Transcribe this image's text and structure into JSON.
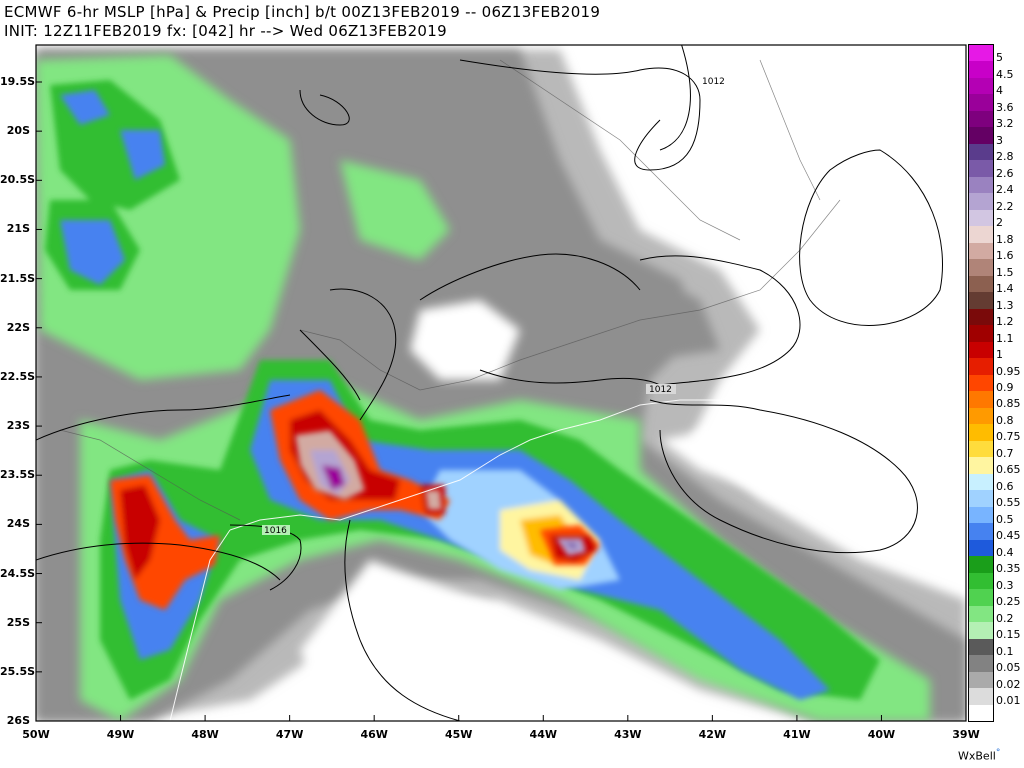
{
  "header": {
    "line1": "ECMWF 6-hr MSLP [hPa] & Precip [inch] b/t 00Z13FEB2019 -- 06Z13FEB2019",
    "line2": "INIT: 12Z11FEB2019 fx: [042] hr --> Wed 06Z13FEB2019"
  },
  "axes": {
    "lat_labels": [
      "19.5S",
      "20S",
      "20.5S",
      "21S",
      "21.5S",
      "22S",
      "22.5S",
      "23S",
      "23.5S",
      "24S",
      "24.5S",
      "25S",
      "25.5S",
      "26S"
    ],
    "lon_labels": [
      "50W",
      "49W",
      "48W",
      "47W",
      "46W",
      "45W",
      "44W",
      "43W",
      "42W",
      "41W",
      "40W",
      "39W"
    ]
  },
  "isobars": [
    {
      "label": "1012"
    },
    {
      "label": "1012"
    },
    {
      "label": "1016"
    }
  ],
  "legend": {
    "labels": [
      "5",
      "4.5",
      "4",
      "3.6",
      "3.2",
      "3",
      "2.8",
      "2.6",
      "2.4",
      "2.2",
      "2",
      "1.8",
      "1.6",
      "1.5",
      "1.4",
      "1.3",
      "1.2",
      "1.1",
      "1",
      "0.95",
      "0.9",
      "0.85",
      "0.8",
      "0.75",
      "0.7",
      "0.65",
      "0.6",
      "0.55",
      "0.5",
      "0.45",
      "0.4",
      "0.35",
      "0.3",
      "0.25",
      "0.2",
      "0.15",
      "0.1",
      "0.05",
      "0.02",
      "0.01"
    ],
    "colors": [
      "#e619e6",
      "#c800c8",
      "#b400b4",
      "#9a009a",
      "#7e007e",
      "#640064",
      "#5a3c8c",
      "#7a5aa8",
      "#9a82c0",
      "#b4a4d2",
      "#d2c6e2",
      "#ecd6d2",
      "#d2aaa2",
      "#b08478",
      "#8c6050",
      "#643c32",
      "#7a0a0a",
      "#a00000",
      "#c80000",
      "#e61e00",
      "#ff4600",
      "#ff7800",
      "#ff9a00",
      "#ffbc00",
      "#ffdc3c",
      "#fff5a0",
      "#c8f0ff",
      "#a0d2ff",
      "#78b4ff",
      "#4682f0",
      "#1e5adc",
      "#1a9e1a",
      "#32be32",
      "#50d250",
      "#82e682",
      "#b4f0b4",
      "#5a5a5a",
      "#828282",
      "#aaaaaa",
      "#dcdcdc",
      "#ffffff"
    ]
  },
  "branding": {
    "label": "WxBell",
    "mark": "°"
  }
}
